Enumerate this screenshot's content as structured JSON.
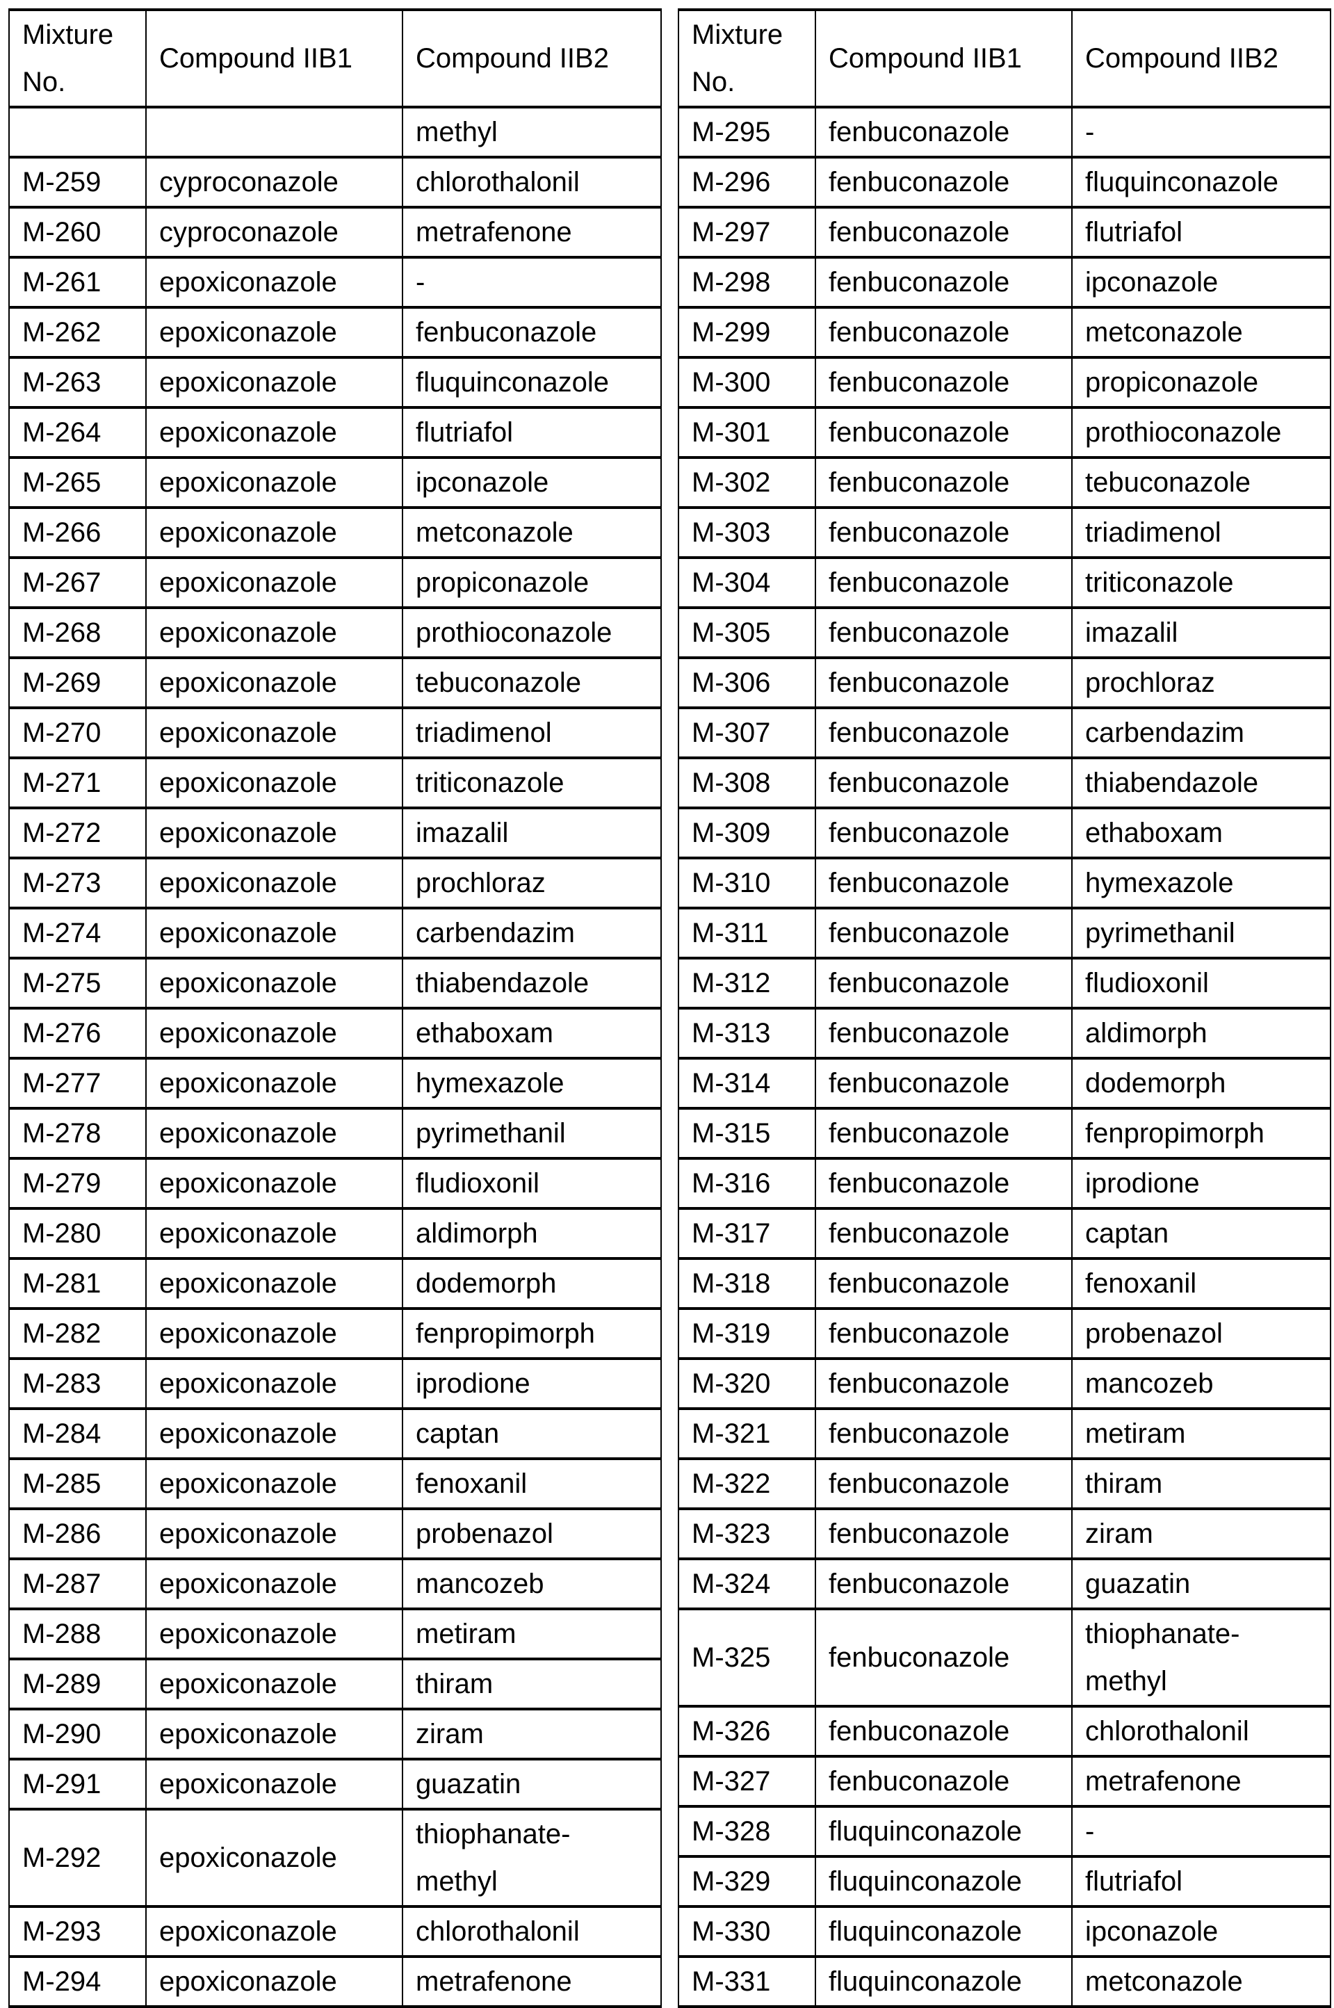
{
  "headers": [
    "Mixture No.",
    "Compound IIB1",
    "Compound IIB2"
  ],
  "left_rows": [
    [
      "",
      "",
      "methyl"
    ],
    [
      "M-259",
      "cyproconazole",
      "chlorothalonil"
    ],
    [
      "M-260",
      "cyproconazole",
      "metrafenone"
    ],
    [
      "M-261",
      "epoxiconazole",
      "-"
    ],
    [
      "M-262",
      "epoxiconazole",
      "fenbuconazole"
    ],
    [
      "M-263",
      "epoxiconazole",
      "fluquinconazole"
    ],
    [
      "M-264",
      "epoxiconazole",
      "flutriafol"
    ],
    [
      "M-265",
      "epoxiconazole",
      "ipconazole"
    ],
    [
      "M-266",
      "epoxiconazole",
      "metconazole"
    ],
    [
      "M-267",
      "epoxiconazole",
      "propiconazole"
    ],
    [
      "M-268",
      "epoxiconazole",
      "prothioconazole"
    ],
    [
      "M-269",
      "epoxiconazole",
      "tebuconazole"
    ],
    [
      "M-270",
      "epoxiconazole",
      "triadimenol"
    ],
    [
      "M-271",
      "epoxiconazole",
      "triticonazole"
    ],
    [
      "M-272",
      "epoxiconazole",
      "imazalil"
    ],
    [
      "M-273",
      "epoxiconazole",
      "prochloraz"
    ],
    [
      "M-274",
      "epoxiconazole",
      "carbendazim"
    ],
    [
      "M-275",
      "epoxiconazole",
      "thiabendazole"
    ],
    [
      "M-276",
      "epoxiconazole",
      "ethaboxam"
    ],
    [
      "M-277",
      "epoxiconazole",
      "hymexazole"
    ],
    [
      "M-278",
      "epoxiconazole",
      "pyrimethanil"
    ],
    [
      "M-279",
      "epoxiconazole",
      "fludioxonil"
    ],
    [
      "M-280",
      "epoxiconazole",
      "aldimorph"
    ],
    [
      "M-281",
      "epoxiconazole",
      "dodemorph"
    ],
    [
      "M-282",
      "epoxiconazole",
      "fenpropimorph"
    ],
    [
      "M-283",
      "epoxiconazole",
      "iprodione"
    ],
    [
      "M-284",
      "epoxiconazole",
      "captan"
    ],
    [
      "M-285",
      "epoxiconazole",
      "fenoxanil"
    ],
    [
      "M-286",
      "epoxiconazole",
      "probenazol"
    ],
    [
      "M-287",
      "epoxiconazole",
      "mancozeb"
    ],
    [
      "M-288",
      "epoxiconazole",
      "metiram"
    ],
    [
      "M-289",
      "epoxiconazole",
      "thiram"
    ],
    [
      "M-290",
      "epoxiconazole",
      "ziram"
    ],
    [
      "M-291",
      "epoxiconazole",
      "guazatin"
    ],
    [
      "M-292",
      "epoxiconazole",
      "thiophanate-methyl"
    ],
    [
      "M-293",
      "epoxiconazole",
      "chlorothalonil"
    ],
    [
      "M-294",
      "epoxiconazole",
      "metrafenone"
    ]
  ],
  "right_rows": [
    [
      "M-295",
      "fenbuconazole",
      "-"
    ],
    [
      "M-296",
      "fenbuconazole",
      "fluquinconazole"
    ],
    [
      "M-297",
      "fenbuconazole",
      "flutriafol"
    ],
    [
      "M-298",
      "fenbuconazole",
      "ipconazole"
    ],
    [
      "M-299",
      "fenbuconazole",
      "metconazole"
    ],
    [
      "M-300",
      "fenbuconazole",
      "propiconazole"
    ],
    [
      "M-301",
      "fenbuconazole",
      "prothioconazole"
    ],
    [
      "M-302",
      "fenbuconazole",
      "tebuconazole"
    ],
    [
      "M-303",
      "fenbuconazole",
      "triadimenol"
    ],
    [
      "M-304",
      "fenbuconazole",
      "triticonazole"
    ],
    [
      "M-305",
      "fenbuconazole",
      "imazalil"
    ],
    [
      "M-306",
      "fenbuconazole",
      "prochloraz"
    ],
    [
      "M-307",
      "fenbuconazole",
      "carbendazim"
    ],
    [
      "M-308",
      "fenbuconazole",
      "thiabendazole"
    ],
    [
      "M-309",
      "fenbuconazole",
      "ethaboxam"
    ],
    [
      "M-310",
      "fenbuconazole",
      "hymexazole"
    ],
    [
      "M-311",
      "fenbuconazole",
      "pyrimethanil"
    ],
    [
      "M-312",
      "fenbuconazole",
      "fludioxonil"
    ],
    [
      "M-313",
      "fenbuconazole",
      "aldimorph"
    ],
    [
      "M-314",
      "fenbuconazole",
      "dodemorph"
    ],
    [
      "M-315",
      "fenbuconazole",
      "fenpropimorph"
    ],
    [
      "M-316",
      "fenbuconazole",
      "iprodione"
    ],
    [
      "M-317",
      "fenbuconazole",
      "captan"
    ],
    [
      "M-318",
      "fenbuconazole",
      "fenoxanil"
    ],
    [
      "M-319",
      "fenbuconazole",
      "probenazol"
    ],
    [
      "M-320",
      "fenbuconazole",
      "mancozeb"
    ],
    [
      "M-321",
      "fenbuconazole",
      "metiram"
    ],
    [
      "M-322",
      "fenbuconazole",
      "thiram"
    ],
    [
      "M-323",
      "fenbuconazole",
      "ziram"
    ],
    [
      "M-324",
      "fenbuconazole",
      "guazatin"
    ],
    [
      "M-325",
      "fenbuconazole",
      "thiophanate-methyl"
    ],
    [
      "M-326",
      "fenbuconazole",
      "chlorothalonil"
    ],
    [
      "M-327",
      "fenbuconazole",
      "metrafenone"
    ],
    [
      "M-328",
      "fluquinconazole",
      "-"
    ],
    [
      "M-329",
      "fluquinconazole",
      "flutriafol"
    ],
    [
      "M-330",
      "fluquinconazole",
      "ipconazole"
    ],
    [
      "M-331",
      "fluquinconazole",
      "metconazole"
    ]
  ]
}
